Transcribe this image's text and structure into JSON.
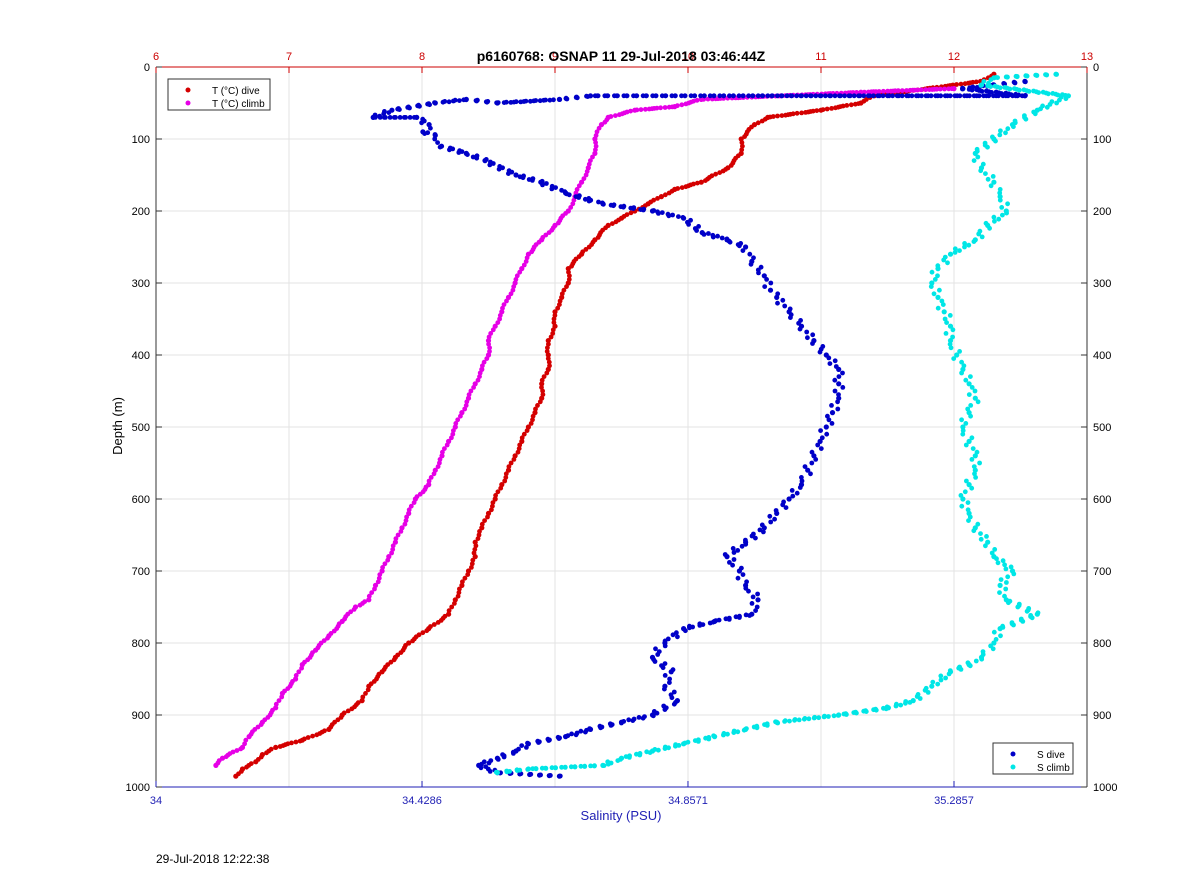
{
  "chart_data": {
    "type": "scatter",
    "title": "p6160768: OSNAP 11 29-Jul-2018 03:46:44Z",
    "ylabel": "Depth (m)",
    "xlabel_bottom": "Salinity (PSU)",
    "xlabel_top": "",
    "ylim": [
      0,
      1000
    ],
    "y_reversed": true,
    "y_ticks": [
      "0",
      "100",
      "200",
      "300",
      "400",
      "500",
      "600",
      "700",
      "800",
      "900",
      "1000"
    ],
    "x_bottom_range": [
      34,
      35.5
    ],
    "x_bottom_ticks": [
      "34",
      "34.4286",
      "34.8571",
      "35.2857"
    ],
    "x_bottom_tick_values": [
      34,
      34.4286,
      34.8571,
      35.2857
    ],
    "x_top_range": [
      6,
      13
    ],
    "x_top_ticks": [
      "6",
      "7",
      "8",
      "9",
      "10",
      "11",
      "12",
      "13"
    ],
    "grid": true,
    "colors": {
      "t_dive": "#d40000",
      "t_climb": "#e600e6",
      "s_dive": "#0000c8",
      "s_climb": "#00e6e6",
      "top_axis": "#cc0000",
      "bottom_axis": "#1f1fb4"
    },
    "legend_temperature": {
      "placement": "top-left",
      "entries": [
        "T (°C) dive",
        "T (°C) climb"
      ]
    },
    "legend_salinity": {
      "placement": "bottom-right",
      "entries": [
        "S dive",
        "S climb"
      ]
    },
    "series": [
      {
        "name": "T (°C) dive",
        "axis": "top",
        "points": [
          [
            12.3,
            10
          ],
          [
            12.2,
            20
          ],
          [
            11.8,
            30
          ],
          [
            11.4,
            40
          ],
          [
            11.3,
            50
          ],
          [
            11.0,
            60
          ],
          [
            10.6,
            70
          ],
          [
            10.5,
            80
          ],
          [
            10.4,
            100
          ],
          [
            10.4,
            120
          ],
          [
            10.3,
            140
          ],
          [
            10.1,
            160
          ],
          [
            9.9,
            170
          ],
          [
            9.8,
            180
          ],
          [
            9.7,
            190
          ],
          [
            9.6,
            200
          ],
          [
            9.5,
            210
          ],
          [
            9.4,
            220
          ],
          [
            9.3,
            240
          ],
          [
            9.2,
            260
          ],
          [
            9.1,
            280
          ],
          [
            9.1,
            300
          ],
          [
            9.05,
            320
          ],
          [
            9.0,
            340
          ],
          [
            9.0,
            360
          ],
          [
            8.95,
            380
          ],
          [
            8.95,
            400
          ],
          [
            8.95,
            420
          ],
          [
            8.9,
            440
          ],
          [
            8.9,
            460
          ],
          [
            8.85,
            480
          ],
          [
            8.8,
            500
          ],
          [
            8.75,
            520
          ],
          [
            8.7,
            540
          ],
          [
            8.65,
            560
          ],
          [
            8.6,
            580
          ],
          [
            8.55,
            600
          ],
          [
            8.5,
            620
          ],
          [
            8.45,
            640
          ],
          [
            8.4,
            660
          ],
          [
            8.4,
            680
          ],
          [
            8.35,
            700
          ],
          [
            8.3,
            720
          ],
          [
            8.25,
            740
          ],
          [
            8.2,
            760
          ],
          [
            8.05,
            780
          ],
          [
            7.9,
            800
          ],
          [
            7.8,
            820
          ],
          [
            7.7,
            840
          ],
          [
            7.6,
            860
          ],
          [
            7.55,
            880
          ],
          [
            7.4,
            900
          ],
          [
            7.3,
            920
          ],
          [
            7.1,
            935
          ],
          [
            6.9,
            945
          ],
          [
            6.8,
            955
          ],
          [
            6.75,
            965
          ],
          [
            6.65,
            975
          ],
          [
            6.6,
            985
          ]
        ]
      },
      {
        "name": "T (°C) climb",
        "axis": "top",
        "points": [
          [
            12.0,
            30
          ],
          [
            11.3,
            35
          ],
          [
            10.7,
            40
          ],
          [
            10.1,
            45
          ],
          [
            9.9,
            55
          ],
          [
            9.6,
            60
          ],
          [
            9.4,
            70
          ],
          [
            9.35,
            80
          ],
          [
            9.3,
            100
          ],
          [
            9.3,
            120
          ],
          [
            9.25,
            140
          ],
          [
            9.2,
            160
          ],
          [
            9.15,
            180
          ],
          [
            9.1,
            200
          ],
          [
            9.0,
            220
          ],
          [
            8.9,
            240
          ],
          [
            8.8,
            260
          ],
          [
            8.75,
            280
          ],
          [
            8.7,
            300
          ],
          [
            8.65,
            320
          ],
          [
            8.6,
            340
          ],
          [
            8.55,
            360
          ],
          [
            8.5,
            380
          ],
          [
            8.5,
            400
          ],
          [
            8.45,
            420
          ],
          [
            8.4,
            440
          ],
          [
            8.35,
            460
          ],
          [
            8.3,
            480
          ],
          [
            8.25,
            500
          ],
          [
            8.2,
            520
          ],
          [
            8.15,
            540
          ],
          [
            8.1,
            560
          ],
          [
            8.05,
            580
          ],
          [
            7.95,
            600
          ],
          [
            7.9,
            620
          ],
          [
            7.85,
            640
          ],
          [
            7.8,
            660
          ],
          [
            7.75,
            680
          ],
          [
            7.7,
            700
          ],
          [
            7.65,
            720
          ],
          [
            7.6,
            740
          ],
          [
            7.5,
            750
          ],
          [
            7.4,
            770
          ],
          [
            7.3,
            790
          ],
          [
            7.2,
            810
          ],
          [
            7.1,
            830
          ],
          [
            7.05,
            850
          ],
          [
            6.95,
            870
          ],
          [
            6.9,
            890
          ],
          [
            6.8,
            910
          ],
          [
            6.7,
            930
          ],
          [
            6.65,
            945
          ],
          [
            6.5,
            960
          ],
          [
            6.45,
            970
          ]
        ]
      },
      {
        "name": "S dive",
        "axis": "bottom",
        "points": [
          [
            35.4,
            20
          ],
          [
            35.35,
            25
          ],
          [
            35.3,
            30
          ],
          [
            35.4,
            40
          ],
          [
            34.7,
            40
          ],
          [
            34.65,
            45
          ],
          [
            34.55,
            50
          ],
          [
            34.5,
            45
          ],
          [
            34.45,
            50
          ],
          [
            34.38,
            60
          ],
          [
            34.35,
            70
          ],
          [
            34.42,
            70
          ],
          [
            34.44,
            80
          ],
          [
            34.43,
            90
          ],
          [
            34.45,
            95
          ],
          [
            34.46,
            110
          ],
          [
            34.5,
            120
          ],
          [
            34.53,
            130
          ],
          [
            34.58,
            150
          ],
          [
            34.62,
            160
          ],
          [
            34.66,
            175
          ],
          [
            34.7,
            185
          ],
          [
            34.72,
            190
          ],
          [
            34.8,
            200
          ],
          [
            34.85,
            210
          ],
          [
            34.88,
            230
          ],
          [
            34.92,
            240
          ],
          [
            34.95,
            250
          ],
          [
            34.96,
            270
          ],
          [
            34.98,
            290
          ],
          [
            34.99,
            310
          ],
          [
            35.0,
            320
          ],
          [
            35.02,
            340
          ],
          [
            35.04,
            360
          ],
          [
            35.06,
            380
          ],
          [
            35.08,
            400
          ],
          [
            35.1,
            420
          ],
          [
            35.1,
            440
          ],
          [
            35.1,
            460
          ],
          [
            35.09,
            480
          ],
          [
            35.08,
            500
          ],
          [
            35.07,
            520
          ],
          [
            35.06,
            540
          ],
          [
            35.05,
            560
          ],
          [
            35.04,
            580
          ],
          [
            35.02,
            600
          ],
          [
            35.0,
            620
          ],
          [
            34.98,
            640
          ],
          [
            34.95,
            660
          ],
          [
            34.92,
            680
          ],
          [
            34.94,
            700
          ],
          [
            34.95,
            720
          ],
          [
            34.97,
            740
          ],
          [
            34.96,
            760
          ],
          [
            34.9,
            770
          ],
          [
            34.85,
            780
          ],
          [
            34.82,
            800
          ],
          [
            34.8,
            820
          ],
          [
            34.83,
            840
          ],
          [
            34.82,
            860
          ],
          [
            34.84,
            880
          ],
          [
            34.8,
            900
          ],
          [
            34.75,
            910
          ],
          [
            34.7,
            920
          ],
          [
            34.66,
            930
          ],
          [
            34.6,
            940
          ],
          [
            34.58,
            950
          ],
          [
            34.55,
            960
          ],
          [
            34.52,
            970
          ],
          [
            34.55,
            980
          ],
          [
            34.65,
            985
          ]
        ]
      },
      {
        "name": "S climb",
        "axis": "bottom",
        "points": [
          [
            35.45,
            10
          ],
          [
            35.35,
            15
          ],
          [
            35.33,
            25
          ],
          [
            35.47,
            40
          ],
          [
            35.42,
            60
          ],
          [
            35.38,
            80
          ],
          [
            35.35,
            100
          ],
          [
            35.32,
            120
          ],
          [
            35.33,
            140
          ],
          [
            35.35,
            160
          ],
          [
            35.36,
            180
          ],
          [
            35.37,
            200
          ],
          [
            35.34,
            220
          ],
          [
            35.32,
            240
          ],
          [
            35.28,
            260
          ],
          [
            35.26,
            280
          ],
          [
            35.25,
            300
          ],
          [
            35.26,
            320
          ],
          [
            35.27,
            340
          ],
          [
            35.28,
            360
          ],
          [
            35.28,
            380
          ],
          [
            35.29,
            400
          ],
          [
            35.3,
            420
          ],
          [
            35.31,
            440
          ],
          [
            35.32,
            460
          ],
          [
            35.31,
            480
          ],
          [
            35.3,
            500
          ],
          [
            35.31,
            520
          ],
          [
            35.32,
            540
          ],
          [
            35.32,
            560
          ],
          [
            35.31,
            580
          ],
          [
            35.3,
            600
          ],
          [
            35.31,
            620
          ],
          [
            35.32,
            640
          ],
          [
            35.34,
            660
          ],
          [
            35.35,
            680
          ],
          [
            35.38,
            700
          ],
          [
            35.36,
            720
          ],
          [
            35.37,
            740
          ],
          [
            35.42,
            760
          ],
          [
            35.36,
            780
          ],
          [
            35.35,
            800
          ],
          [
            35.33,
            820
          ],
          [
            35.31,
            830
          ],
          [
            35.28,
            840
          ],
          [
            35.25,
            860
          ],
          [
            35.22,
            880
          ],
          [
            35.18,
            890
          ],
          [
            35.1,
            900
          ],
          [
            35.0,
            910
          ],
          [
            34.95,
            920
          ],
          [
            34.9,
            930
          ],
          [
            34.85,
            940
          ],
          [
            34.8,
            950
          ],
          [
            34.75,
            960
          ],
          [
            34.72,
            970
          ],
          [
            34.6,
            975
          ],
          [
            34.55,
            980
          ]
        ]
      }
    ]
  },
  "footer": {
    "timestamp": "29-Jul-2018 12:22:38"
  }
}
